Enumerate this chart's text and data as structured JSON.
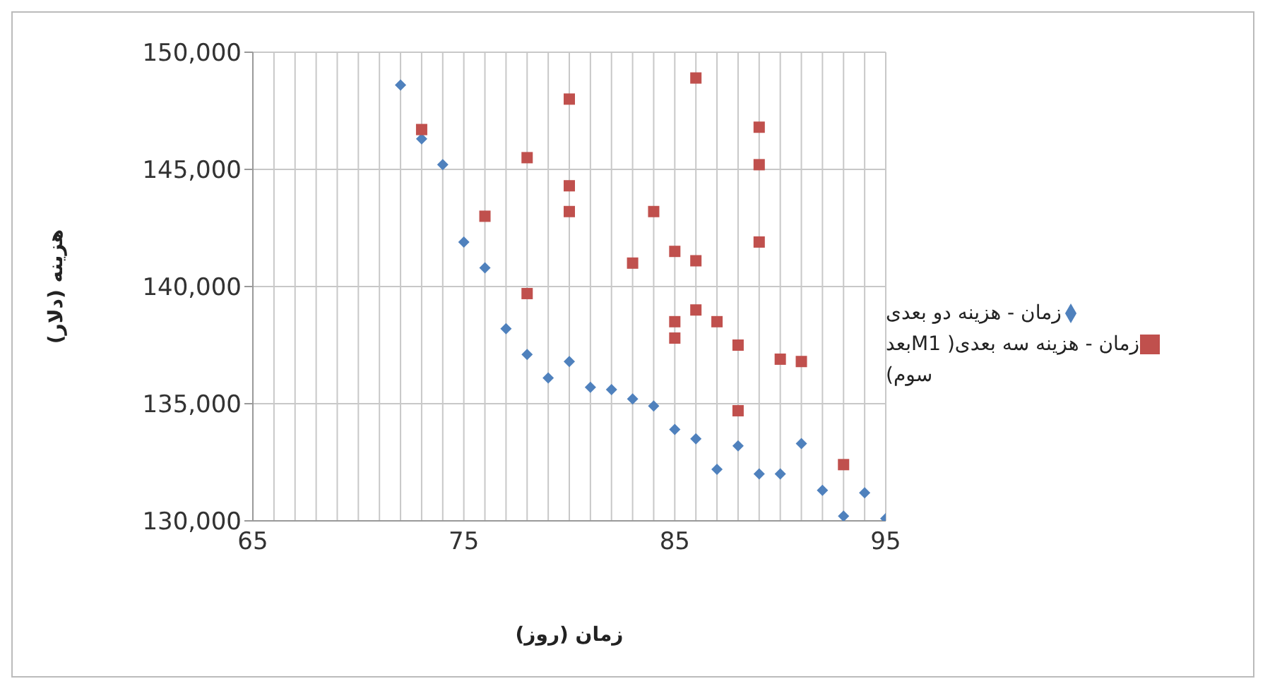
{
  "chart_data": {
    "type": "scatter",
    "xlabel": "زمان (روز)",
    "ylabel": "هزینه (دلار)",
    "xlim": [
      65,
      95
    ],
    "ylim": [
      130000,
      150000
    ],
    "xticks": [
      65,
      {
        "value": 66,
        "label": null
      },
      {
        "value": 67,
        "label": null
      },
      {
        "value": 68,
        "label": null
      },
      {
        "value": 69,
        "label": null
      },
      {
        "value": 70,
        "label": null
      },
      {
        "value": 71,
        "label": null
      },
      {
        "value": 72,
        "label": null
      },
      {
        "value": 73,
        "label": null
      },
      {
        "value": 74,
        "label": null
      },
      75,
      {
        "value": 76,
        "label": null
      },
      {
        "value": 77,
        "label": null
      },
      {
        "value": 78,
        "label": null
      },
      {
        "value": 79,
        "label": null
      },
      {
        "value": 80,
        "label": null
      },
      {
        "value": 81,
        "label": null
      },
      {
        "value": 82,
        "label": null
      },
      {
        "value": 83,
        "label": null
      },
      {
        "value": 84,
        "label": null
      },
      85,
      {
        "value": 86,
        "label": null
      },
      {
        "value": 87,
        "label": null
      },
      {
        "value": 88,
        "label": null
      },
      {
        "value": 89,
        "label": null
      },
      {
        "value": 90,
        "label": null
      },
      {
        "value": 91,
        "label": null
      },
      {
        "value": 92,
        "label": null
      },
      {
        "value": 93,
        "label": null
      },
      {
        "value": 94,
        "label": null
      },
      95
    ],
    "yticks": [
      {
        "value": 130000,
        "label": "130,000"
      },
      {
        "value": 135000,
        "label": "135,000"
      },
      {
        "value": 140000,
        "label": "140,000"
      },
      {
        "value": 145000,
        "label": "145,000"
      },
      {
        "value": 150000,
        "label": "150,000"
      }
    ],
    "grid": true,
    "legend": "right",
    "series": [
      {
        "name": "زمان - هزینه دو بعدی",
        "color": "#4f81bd",
        "marker": "diamond",
        "x": [
          72,
          73,
          74,
          75,
          76,
          77,
          78,
          79,
          80,
          81,
          82,
          83,
          84,
          85,
          86,
          87,
          88,
          89,
          90,
          91,
          92,
          93,
          94,
          95
        ],
        "values": [
          148600,
          146300,
          145200,
          141900,
          140800,
          138200,
          137100,
          136100,
          136800,
          135700,
          135600,
          135200,
          134900,
          133900,
          133500,
          132200,
          133200,
          132000,
          132000,
          133300,
          131300,
          130200,
          131200,
          130100
        ]
      },
      {
        "name": "زمان - هزینه سه بعدی( M1بعد سوم)",
        "color": "#c0504d",
        "marker": "square",
        "x": [
          73,
          76,
          78,
          78,
          80,
          80,
          80,
          83,
          84,
          85,
          85,
          85,
          86,
          86,
          86,
          87,
          88,
          88,
          89,
          89,
          89,
          90,
          91,
          93
        ],
        "values": [
          146700,
          143000,
          139700,
          145500,
          148000,
          144300,
          143200,
          141000,
          143200,
          141500,
          138500,
          137800,
          148900,
          141100,
          139000,
          138500,
          137500,
          134700,
          146800,
          145200,
          141900,
          136900,
          136800,
          132400
        ]
      }
    ]
  }
}
